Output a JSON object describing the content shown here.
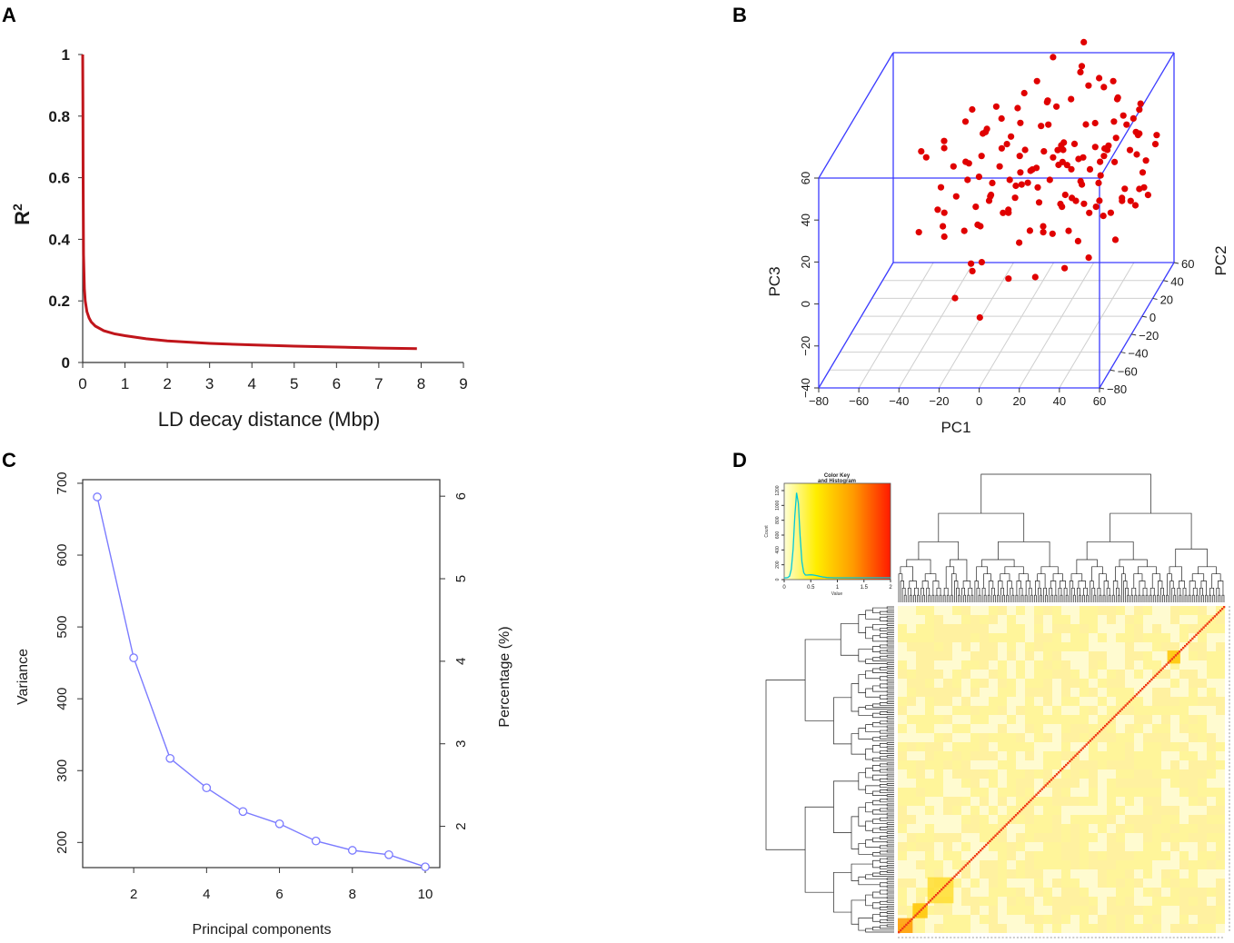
{
  "panels": {
    "a": "A",
    "b": "B",
    "c": "C",
    "d": "D"
  },
  "colors": {
    "ld_curve": "#c0151b",
    "box3d": "#3b3bff",
    "points3d": "#e00000",
    "scree": "#7b7bff",
    "heat_low": "#ffffe0",
    "heat_mid": "#ffd400",
    "heat_high": "#ff2a00",
    "histogram_line": "#00c8d8"
  },
  "chart_data": [
    {
      "id": "A",
      "type": "line",
      "title": "",
      "xlabel": "LD decay distance (Mbp)",
      "ylabel": "R",
      "ylabel_superscript": "2",
      "xlim": [
        0,
        9
      ],
      "ylim": [
        0,
        1
      ],
      "xticks": [
        "0",
        "1",
        "2",
        "3",
        "4",
        "5",
        "6",
        "7",
        "8",
        "9"
      ],
      "yticks": [
        "0",
        "0.2",
        "0.4",
        "0.6",
        "0.8",
        "1"
      ],
      "x": [
        0.0,
        0.005,
        0.01,
        0.02,
        0.04,
        0.06,
        0.1,
        0.15,
        0.2,
        0.3,
        0.5,
        0.75,
        1,
        1.5,
        2,
        3,
        4,
        5,
        6,
        7,
        7.9
      ],
      "y": [
        1.0,
        0.85,
        0.6,
        0.35,
        0.24,
        0.2,
        0.165,
        0.145,
        0.132,
        0.118,
        0.103,
        0.093,
        0.087,
        0.077,
        0.07,
        0.062,
        0.057,
        0.053,
        0.05,
        0.047,
        0.045
      ]
    },
    {
      "id": "B",
      "type": "scatter",
      "title": "",
      "xlabel": "PC1",
      "ylabel": "PC2",
      "zlabel": "PC3",
      "xlim": [
        -80,
        60
      ],
      "ylim": [
        -80,
        60
      ],
      "zlim": [
        -40,
        60
      ],
      "xticks": [
        "−80",
        "−60",
        "−40",
        "−20",
        "0",
        "20",
        "40",
        "60"
      ],
      "yticks": [
        "−80",
        "−60",
        "−40",
        "−20",
        "0",
        "20",
        "40",
        "60"
      ],
      "zticks": [
        "−40",
        "−20",
        "0",
        "20",
        "40",
        "60"
      ],
      "points": [
        [
          -45,
          -10,
          40
        ],
        [
          -48,
          -8,
          42
        ],
        [
          -40,
          5,
          38
        ],
        [
          -30,
          20,
          50
        ],
        [
          -35,
          -20,
          30
        ],
        [
          -25,
          -5,
          35
        ],
        [
          -20,
          10,
          45
        ],
        [
          -15,
          -30,
          25
        ],
        [
          -10,
          0,
          40
        ],
        [
          -5,
          15,
          30
        ],
        [
          0,
          -25,
          20
        ],
        [
          5,
          30,
          50
        ],
        [
          10,
          -10,
          35
        ],
        [
          15,
          20,
          25
        ],
        [
          20,
          -35,
          15
        ],
        [
          25,
          5,
          40
        ],
        [
          30,
          25,
          30
        ],
        [
          35,
          -15,
          20
        ],
        [
          40,
          10,
          35
        ],
        [
          45,
          -30,
          25
        ],
        [
          50,
          0,
          15
        ],
        [
          55,
          20,
          20
        ],
        [
          -28,
          -40,
          15
        ],
        [
          -22,
          35,
          45
        ],
        [
          -18,
          -15,
          10
        ],
        [
          -12,
          25,
          35
        ],
        [
          -8,
          -45,
          5
        ],
        [
          -3,
          40,
          55
        ],
        [
          2,
          -20,
          25
        ],
        [
          8,
          35,
          45
        ],
        [
          12,
          -5,
          5
        ],
        [
          18,
          45,
          60
        ],
        [
          22,
          -25,
          10
        ],
        [
          28,
          15,
          45
        ],
        [
          32,
          -40,
          0
        ],
        [
          38,
          30,
          40
        ],
        [
          42,
          -5,
          10
        ],
        [
          48,
          40,
          30
        ],
        [
          52,
          -20,
          5
        ],
        [
          -38,
          15,
          25
        ],
        [
          -32,
          -25,
          20
        ],
        [
          -26,
          30,
          35
        ],
        [
          -16,
          -35,
          0
        ],
        [
          -6,
          20,
          20
        ],
        [
          4,
          -40,
          -5
        ],
        [
          14,
          0,
          25
        ],
        [
          24,
          35,
          55
        ],
        [
          34,
          0,
          30
        ],
        [
          44,
          25,
          45
        ],
        [
          54,
          -10,
          25
        ],
        [
          -42,
          -35,
          15
        ],
        [
          -34,
          5,
          15
        ],
        [
          -24,
          -15,
          40
        ],
        [
          -14,
          45,
          40
        ],
        [
          -4,
          -10,
          15
        ],
        [
          6,
          10,
          10
        ],
        [
          16,
          -45,
          20
        ],
        [
          26,
          40,
          35
        ],
        [
          36,
          -25,
          35
        ],
        [
          46,
          15,
          10
        ],
        [
          56,
          5,
          35
        ],
        [
          -20,
          -50,
          -10
        ],
        [
          -10,
          -55,
          5
        ],
        [
          0,
          50,
          30
        ],
        [
          10,
          55,
          40
        ],
        [
          20,
          -50,
          0
        ],
        [
          30,
          50,
          20
        ],
        [
          40,
          -45,
          15
        ],
        [
          50,
          45,
          15
        ],
        [
          -30,
          40,
          30
        ],
        [
          -5,
          -60,
          -15
        ],
        [
          5,
          -30,
          35
        ],
        [
          15,
          -15,
          45
        ],
        [
          25,
          -20,
          50
        ],
        [
          35,
          40,
          55
        ],
        [
          45,
          35,
          0
        ],
        [
          55,
          30,
          5
        ],
        [
          -27,
          0,
          25
        ],
        [
          -17,
          5,
          15
        ],
        [
          -7,
          -35,
          30
        ],
        [
          3,
          25,
          40
        ],
        [
          13,
          30,
          30
        ],
        [
          23,
          -5,
          20
        ],
        [
          33,
          20,
          15
        ],
        [
          43,
          -15,
          40
        ],
        [
          53,
          10,
          50
        ],
        [
          -12,
          10,
          5
        ],
        [
          -2,
          5,
          50
        ],
        [
          8,
          -35,
          10
        ],
        [
          18,
          10,
          35
        ],
        [
          28,
          -30,
          25
        ],
        [
          38,
          5,
          25
        ],
        [
          48,
          -35,
          30
        ],
        [
          58,
          -5,
          15
        ],
        [
          -44,
          20,
          35
        ],
        [
          -36,
          30,
          40
        ],
        [
          -20,
          20,
          15
        ],
        [
          -8,
          30,
          10
        ],
        [
          6,
          45,
          20
        ],
        [
          16,
          50,
          55
        ],
        [
          26,
          -10,
          5
        ],
        [
          36,
          45,
          45
        ],
        [
          46,
          50,
          40
        ],
        [
          56,
          40,
          25
        ],
        [
          -26,
          -10,
          5
        ],
        [
          -16,
          -20,
          35
        ],
        [
          -6,
          0,
          25
        ],
        [
          4,
          15,
          15
        ],
        [
          14,
          20,
          5
        ],
        [
          24,
          25,
          25
        ],
        [
          34,
          -35,
          45
        ],
        [
          44,
          -40,
          5
        ],
        [
          54,
          15,
          40
        ],
        [
          -24,
          15,
          30
        ],
        [
          -14,
          -5,
          20
        ],
        [
          -4,
          35,
          15
        ],
        [
          11,
          -25,
          40
        ],
        [
          21,
          15,
          10
        ],
        [
          31,
          10,
          5
        ],
        [
          41,
          20,
          25
        ],
        [
          51,
          -25,
          20
        ],
        [
          -38,
          -5,
          5
        ],
        [
          -18,
          40,
          25
        ],
        [
          2,
          40,
          45
        ],
        [
          12,
          40,
          15
        ],
        [
          22,
          30,
          10
        ],
        [
          32,
          35,
          25
        ],
        [
          42,
          45,
          20
        ],
        [
          52,
          25,
          10
        ],
        [
          -30,
          -45,
          30
        ],
        [
          -10,
          -40,
          20
        ],
        [
          7,
          -15,
          30
        ],
        [
          17,
          5,
          30
        ],
        [
          27,
          0,
          15
        ],
        [
          37,
          15,
          30
        ],
        [
          47,
          0,
          45
        ],
        [
          57,
          15,
          15
        ],
        [
          -15,
          15,
          25
        ],
        [
          -1,
          10,
          35
        ],
        [
          9,
          25,
          25
        ],
        [
          19,
          35,
          20
        ],
        [
          29,
          45,
          50
        ],
        [
          39,
          50,
          30
        ],
        [
          49,
          30,
          35
        ],
        [
          -22,
          45,
          35
        ],
        [
          -12,
          50,
          45
        ],
        [
          1,
          55,
          60
        ],
        [
          15,
          60,
          65
        ],
        [
          24,
          55,
          50
        ],
        [
          33,
          55,
          40
        ],
        [
          44,
          55,
          35
        ],
        [
          54,
          50,
          25
        ]
      ]
    },
    {
      "id": "C",
      "type": "line",
      "title": "",
      "xlabel": "Principal components",
      "ylabel": "Variance",
      "y2label": "Percentage (%)",
      "xlim": [
        0.6,
        10.4
      ],
      "ylim": [
        165,
        705
      ],
      "y2lim": [
        1.5,
        6.2
      ],
      "xticks": [
        "2",
        "4",
        "6",
        "8",
        "10"
      ],
      "yticks": [
        "200",
        "300",
        "400",
        "500",
        "600",
        "700"
      ],
      "y2ticks": [
        "2",
        "3",
        "4",
        "5",
        "6"
      ],
      "x": [
        1,
        2,
        3,
        4,
        5,
        6,
        7,
        8,
        9,
        10
      ],
      "values": [
        681,
        457,
        317,
        276,
        243,
        226,
        202,
        189,
        183,
        166
      ]
    },
    {
      "id": "D",
      "type": "heatmap",
      "title": "",
      "key_title": "Color Key",
      "key_subtitle": "and Histogram",
      "key_xlabel": "Value",
      "key_ylabel": "Count",
      "key_xticks": [
        "0",
        "0.5",
        "1",
        "1.5",
        "2"
      ],
      "key_yticks": [
        "0",
        "200",
        "400",
        "600",
        "800",
        "1000",
        "1200"
      ],
      "n_samples": 176,
      "diagonal_value": 2.0,
      "background_value": 0.25,
      "blocks": [
        {
          "start": 0,
          "end": 8,
          "value": 1.0
        },
        {
          "start": 8,
          "end": 16,
          "value": 0.6
        },
        {
          "start": 16,
          "end": 30,
          "value": 0.45
        },
        {
          "start": 145,
          "end": 152,
          "value": 0.7
        }
      ]
    }
  ]
}
